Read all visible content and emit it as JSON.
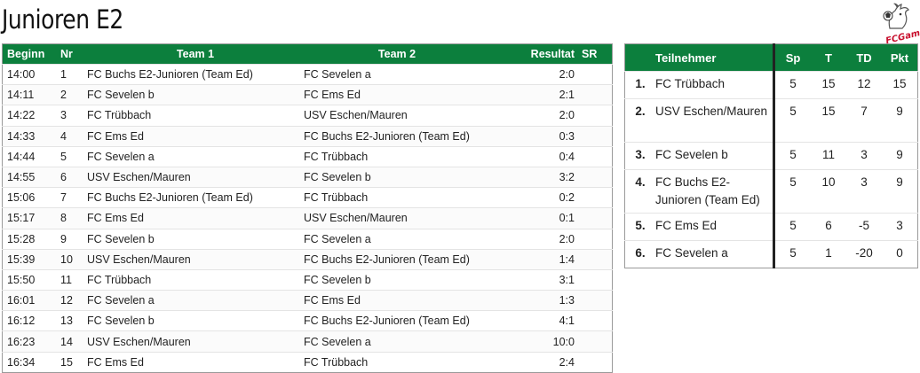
{
  "page": {
    "title": "Junioren E2",
    "logo_text": "FCGams"
  },
  "schedule": {
    "headers": [
      "Beginn",
      "Nr",
      "Team 1",
      "Team 2",
      "Resultat",
      "SR"
    ],
    "rows": [
      {
        "time": "14:00",
        "nr": "1",
        "team1": "FC Buchs E2-Junioren (Team Ed)",
        "team2": "FC Sevelen a",
        "result": "2:0",
        "sr": ""
      },
      {
        "time": "14:11",
        "nr": "2",
        "team1": "FC Sevelen b",
        "team2": "FC Ems Ed",
        "result": "2:1",
        "sr": ""
      },
      {
        "time": "14:22",
        "nr": "3",
        "team1": "FC Trübbach",
        "team2": "USV Eschen/Mauren",
        "result": "2:0",
        "sr": ""
      },
      {
        "time": "14:33",
        "nr": "4",
        "team1": "FC Ems Ed",
        "team2": "FC Buchs E2-Junioren (Team Ed)",
        "result": "0:3",
        "sr": ""
      },
      {
        "time": "14:44",
        "nr": "5",
        "team1": "FC Sevelen a",
        "team2": "FC Trübbach",
        "result": "0:4",
        "sr": ""
      },
      {
        "time": "14:55",
        "nr": "6",
        "team1": "USV Eschen/Mauren",
        "team2": "FC Sevelen b",
        "result": "3:2",
        "sr": ""
      },
      {
        "time": "15:06",
        "nr": "7",
        "team1": "FC Buchs E2-Junioren (Team Ed)",
        "team2": "FC Trübbach",
        "result": "0:2",
        "sr": ""
      },
      {
        "time": "15:17",
        "nr": "8",
        "team1": "FC Ems Ed",
        "team2": "USV Eschen/Mauren",
        "result": "0:1",
        "sr": ""
      },
      {
        "time": "15:28",
        "nr": "9",
        "team1": "FC Sevelen b",
        "team2": "FC Sevelen a",
        "result": "2:0",
        "sr": ""
      },
      {
        "time": "15:39",
        "nr": "10",
        "team1": "USV Eschen/Mauren",
        "team2": "FC Buchs E2-Junioren (Team Ed)",
        "result": "1:4",
        "sr": ""
      },
      {
        "time": "15:50",
        "nr": "11",
        "team1": "FC Trübbach",
        "team2": "FC Sevelen b",
        "result": "3:1",
        "sr": ""
      },
      {
        "time": "16:01",
        "nr": "12",
        "team1": "FC Sevelen a",
        "team2": "FC Ems Ed",
        "result": "1:3",
        "sr": ""
      },
      {
        "time": "16:12",
        "nr": "13",
        "team1": "FC Sevelen b",
        "team2": "FC Buchs E2-Junioren (Team Ed)",
        "result": "4:1",
        "sr": ""
      },
      {
        "time": "16:23",
        "nr": "14",
        "team1": "USV Eschen/Mauren",
        "team2": "FC Sevelen a",
        "result": "10:0",
        "sr": ""
      },
      {
        "time": "16:34",
        "nr": "15",
        "team1": "FC Ems Ed",
        "team2": "FC Trübbach",
        "result": "2:4",
        "sr": ""
      }
    ]
  },
  "standings": {
    "headers": [
      "Teilnehmer",
      "Sp",
      "T",
      "TD",
      "Pkt"
    ],
    "rows": [
      {
        "rank": "1.",
        "team": "FC Trübbach",
        "sp": "5",
        "t": "15",
        "td": "12",
        "pkt": "15"
      },
      {
        "rank": "2.",
        "team": "USV Eschen/Mauren",
        "sp": "5",
        "t": "15",
        "td": "7",
        "pkt": "9"
      },
      {
        "rank": "3.",
        "team": "FC Sevelen b",
        "sp": "5",
        "t": "11",
        "td": "3",
        "pkt": "9"
      },
      {
        "rank": "4.",
        "team": "FC Buchs E2-Junioren (Team Ed)",
        "sp": "5",
        "t": "10",
        "td": "3",
        "pkt": "9"
      },
      {
        "rank": "5.",
        "team": "FC Ems Ed",
        "sp": "5",
        "t": "6",
        "td": "-5",
        "pkt": "3"
      },
      {
        "rank": "6.",
        "team": "FC Sevelen a",
        "sp": "5",
        "t": "1",
        "td": "-20",
        "pkt": "0"
      }
    ]
  },
  "colors": {
    "header_green": "#0c7f3d",
    "logo_red": "#c8102e"
  }
}
